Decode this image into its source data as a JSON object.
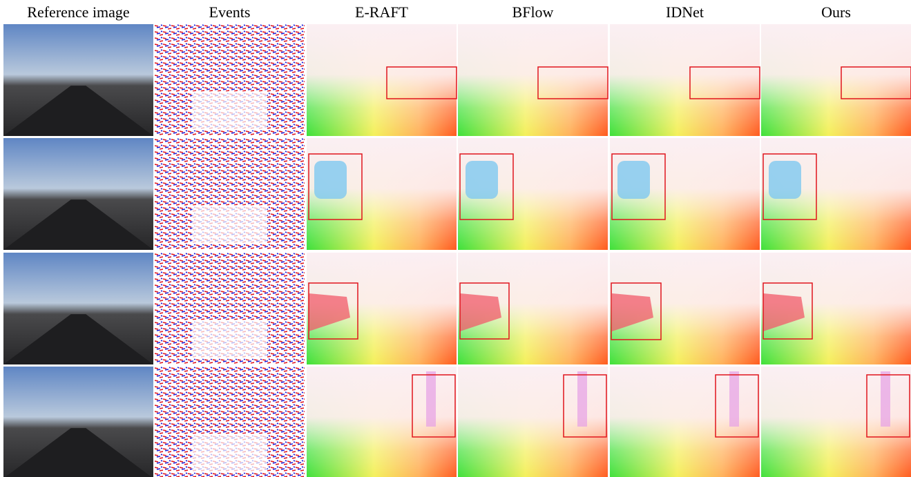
{
  "figure": {
    "columns": [
      "Reference image",
      "Events",
      "E-RAFT",
      "BFlow",
      "IDNet",
      "Ours"
    ]
  }
}
